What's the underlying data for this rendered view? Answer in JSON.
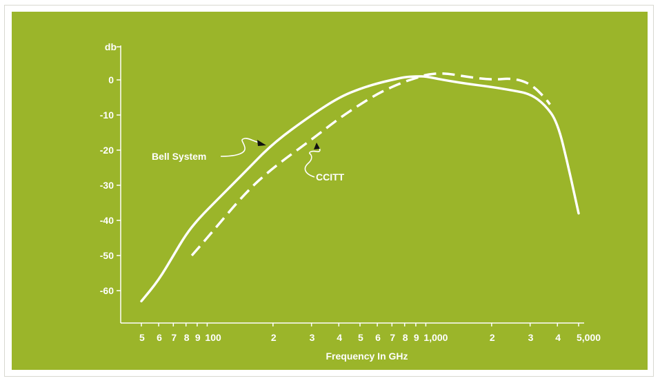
{
  "colors": {
    "panel_background": "#9bb52a",
    "foreground": "#ffffff"
  },
  "chart_data": {
    "type": "line",
    "title": "",
    "xlabel": "Frequency In GHz",
    "ylabel": "db",
    "x_scale": "log",
    "xlim": [
      40,
      5500
    ],
    "ylim": [
      -70,
      5
    ],
    "y_ticks": [
      0,
      -10,
      -20,
      -30,
      -40,
      -50,
      -60
    ],
    "x_ticks": [
      {
        "value": 50,
        "label": "5"
      },
      {
        "value": 60,
        "label": "6"
      },
      {
        "value": 70,
        "label": "7"
      },
      {
        "value": 80,
        "label": "8"
      },
      {
        "value": 90,
        "label": "9"
      },
      {
        "value": 100,
        "label": "100"
      },
      {
        "value": 200,
        "label": "2"
      },
      {
        "value": 300,
        "label": "3"
      },
      {
        "value": 400,
        "label": "4"
      },
      {
        "value": 500,
        "label": "5"
      },
      {
        "value": 600,
        "label": "6"
      },
      {
        "value": 700,
        "label": "7"
      },
      {
        "value": 800,
        "label": "8"
      },
      {
        "value": 900,
        "label": "9"
      },
      {
        "value": 1000,
        "label": "1,000"
      },
      {
        "value": 2000,
        "label": "2"
      },
      {
        "value": 3000,
        "label": "3"
      },
      {
        "value": 4000,
        "label": "4"
      },
      {
        "value": 5000,
        "label": "5,000"
      }
    ],
    "grid": false,
    "series": [
      {
        "name": "Bell System",
        "style": "solid",
        "points": [
          [
            50,
            -63
          ],
          [
            60,
            -57
          ],
          [
            70,
            -50
          ],
          [
            80,
            -44
          ],
          [
            90,
            -40
          ],
          [
            100,
            -37
          ],
          [
            150,
            -26
          ],
          [
            200,
            -18
          ],
          [
            300,
            -10
          ],
          [
            400,
            -5
          ],
          [
            500,
            -2.5
          ],
          [
            600,
            -1
          ],
          [
            700,
            0
          ],
          [
            800,
            0.8
          ],
          [
            900,
            1
          ],
          [
            1000,
            1
          ],
          [
            1200,
            0
          ],
          [
            1500,
            -1
          ],
          [
            2000,
            -2
          ],
          [
            2500,
            -3
          ],
          [
            3000,
            -4
          ],
          [
            3500,
            -7
          ],
          [
            4000,
            -12
          ],
          [
            4500,
            -25
          ],
          [
            5000,
            -38
          ]
        ]
      },
      {
        "name": "CCITT",
        "style": "dashed",
        "points": [
          [
            85,
            -50
          ],
          [
            100,
            -45
          ],
          [
            150,
            -32
          ],
          [
            200,
            -25
          ],
          [
            300,
            -17
          ],
          [
            400,
            -11
          ],
          [
            500,
            -7
          ],
          [
            600,
            -4
          ],
          [
            700,
            -2
          ],
          [
            800,
            -0.5
          ],
          [
            900,
            0.5
          ],
          [
            1000,
            1.5
          ],
          [
            1200,
            2
          ],
          [
            1500,
            1
          ],
          [
            2000,
            0
          ],
          [
            2500,
            0.5
          ],
          [
            3000,
            -1
          ],
          [
            3500,
            -5
          ],
          [
            3700,
            -7
          ]
        ]
      }
    ],
    "annotations": [
      {
        "text": "Bell System",
        "series": "Bell System",
        "at": [
          180,
          -20
        ]
      },
      {
        "text": "CCITT",
        "series": "CCITT",
        "at": [
          280,
          -17
        ]
      }
    ]
  }
}
